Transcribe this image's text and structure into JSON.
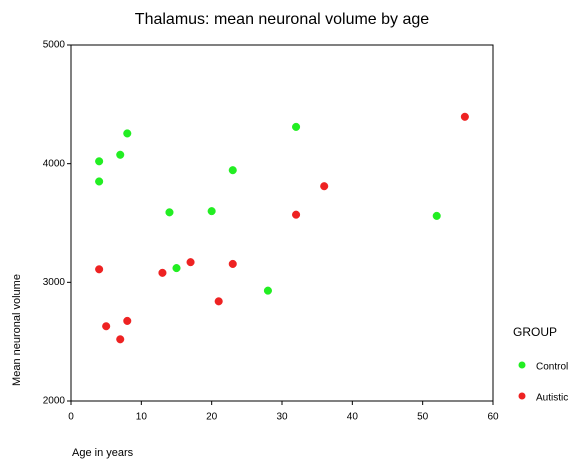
{
  "chart_data": {
    "type": "scatter",
    "title": "Thalamus: mean neuronal volume by age",
    "x_label": "Age in years",
    "y_label": "Mean neuronal volume",
    "legend_title": "GROUP",
    "legend": "right",
    "xlim": [
      0,
      60
    ],
    "xticks": [
      0,
      10,
      20,
      30,
      40,
      50,
      60
    ],
    "ylim": [
      2000,
      5000
    ],
    "yticks": [
      2000,
      3000,
      4000,
      5000
    ],
    "series": [
      {
        "name": "Control",
        "color": "#22ee22",
        "x": [
          4,
          4,
          7,
          8,
          14,
          15,
          20,
          23,
          28,
          32,
          52
        ],
        "values": [
          4020,
          3850,
          4075,
          4255,
          3590,
          3120,
          3600,
          3945,
          2930,
          4310,
          3560
        ]
      },
      {
        "name": "Autistic",
        "color": "#ee2222",
        "x": [
          4,
          5,
          7,
          8,
          13,
          17,
          21,
          23,
          32,
          36,
          56
        ],
        "values": [
          3110,
          2630,
          2520,
          2675,
          3080,
          3170,
          2840,
          3155,
          3570,
          3810,
          4395
        ]
      }
    ]
  }
}
